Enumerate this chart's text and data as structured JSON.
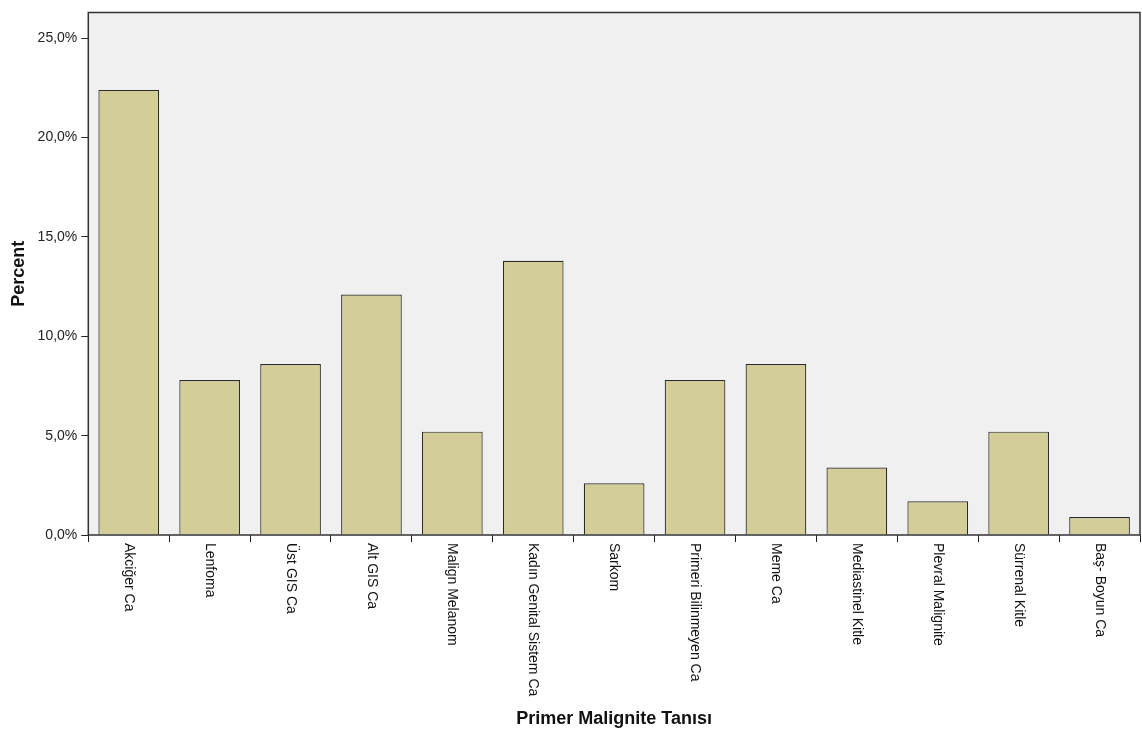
{
  "chart_data": {
    "type": "bar",
    "xlabel": "Primer Malignite Tanısı",
    "ylabel": "Percent",
    "categories": [
      "Akciğer Ca",
      "Lenfoma",
      "Üst GIS Ca",
      "Alt GIS Ca",
      "Malign Melanom",
      "Kadın Genital Sistem Ca",
      "Sarkom",
      "Primeri Bilinmeyen Ca",
      "Meme Ca",
      "Mediastinel Kitle",
      "Plevral Malignite",
      "Sürrenal Kitle",
      "Baş- Boyun Ca"
    ],
    "values": [
      22.4,
      7.8,
      8.6,
      12.1,
      5.2,
      13.8,
      2.6,
      7.8,
      8.6,
      3.4,
      1.7,
      5.2,
      0.9
    ],
    "color": "#d3ce97",
    "ylim": [
      0,
      26.3
    ],
    "yticks": [
      {
        "value": 0,
        "label": "0,0%"
      },
      {
        "value": 5,
        "label": "5,0%"
      },
      {
        "value": 10,
        "label": "10,0%"
      },
      {
        "value": 15,
        "label": "15,0%"
      },
      {
        "value": 20,
        "label": "20,0%"
      },
      {
        "value": 25,
        "label": "25,0%"
      }
    ],
    "grid": false,
    "legend": false
  }
}
